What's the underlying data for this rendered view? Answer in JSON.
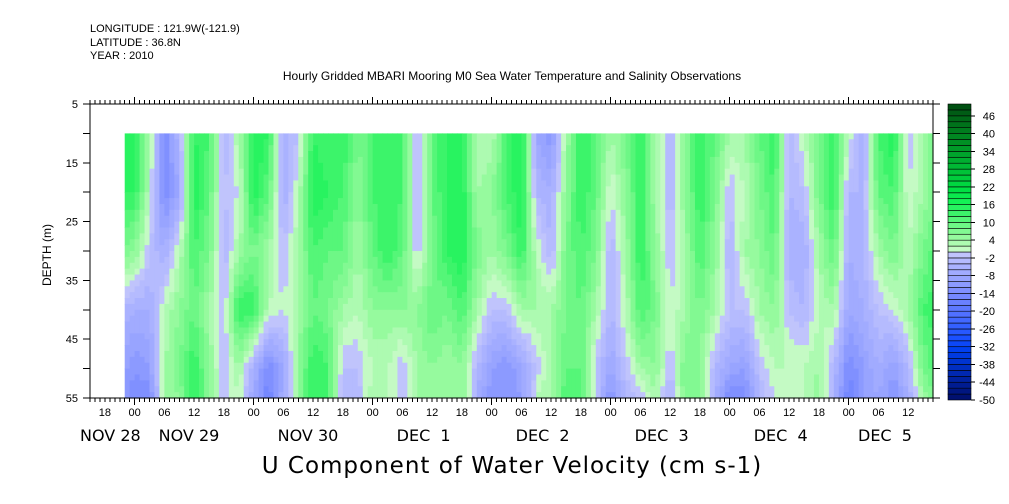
{
  "header": {
    "longitude": "LONGITUDE : 121.9W(-121.9)",
    "latitude": "LATITUDE : 36.8N",
    "year": "YEAR : 2010"
  },
  "chart_data": {
    "type": "heatmap",
    "title": "Hourly Gridded MBARI Mooring M0 Sea Water Temperature and Salinity Observations",
    "xlabel": "U Component of Water Velocity (cm s-1)",
    "ylabel": "DEPTH (m)",
    "xlim": [
      "2010-11-28 15:00",
      "2010-12-05 17:00"
    ],
    "ylim": [
      5,
      55
    ],
    "y_inverted": true,
    "y_ticks": [
      5,
      15,
      25,
      35,
      45,
      55
    ],
    "hour_ticks": {
      "start": "2010-11-28 18:00",
      "step_hours": 6,
      "labels": [
        "18",
        "00",
        "06",
        "12",
        "18",
        "00",
        "06",
        "12",
        "18",
        "00",
        "06",
        "12",
        "18",
        "00",
        "06",
        "12",
        "18",
        "00",
        "06",
        "12",
        "18",
        "00",
        "06",
        "12",
        "18",
        "00",
        "06",
        "12"
      ]
    },
    "date_labels": [
      {
        "date": "2010-11-28",
        "label": "NOV 28"
      },
      {
        "date": "2010-11-29",
        "label": "NOV 29"
      },
      {
        "date": "2010-11-30",
        "label": "NOV 30"
      },
      {
        "date": "2010-12-01",
        "label": "DEC  1"
      },
      {
        "date": "2010-12-02",
        "label": "DEC  2"
      },
      {
        "date": "2010-12-03",
        "label": "DEC  3"
      },
      {
        "date": "2010-12-04",
        "label": "DEC  4"
      },
      {
        "date": "2010-12-05",
        "label": "DEC  5"
      }
    ],
    "data_time_range": [
      "2010-11-28 22:00",
      "2010-12-05 17:00"
    ],
    "grid_time_start": "2010-11-28 21:00",
    "grid_step_hours": 3,
    "depths": [
      10,
      20,
      30,
      40,
      50,
      55
    ],
    "values": [
      [
        14,
        14,
        8,
        -4,
        -8,
        -8
      ],
      [
        16,
        14,
        6,
        -6,
        -12,
        -14
      ],
      [
        4,
        2,
        -2,
        -6,
        -10,
        -14
      ],
      [
        -14,
        -14,
        -6,
        2,
        4,
        4
      ],
      [
        -4,
        -8,
        2,
        6,
        8,
        6
      ],
      [
        14,
        16,
        12,
        10,
        14,
        14
      ],
      [
        12,
        10,
        8,
        4,
        6,
        6
      ],
      [
        -4,
        -2,
        -4,
        -2,
        -2,
        -2
      ],
      [
        4,
        0,
        4,
        14,
        4,
        2
      ],
      [
        16,
        16,
        8,
        14,
        -6,
        -8
      ],
      [
        14,
        10,
        4,
        2,
        -14,
        -16
      ],
      [
        -6,
        -6,
        -2,
        0,
        -8,
        -6
      ],
      [
        -2,
        2,
        4,
        4,
        6,
        6
      ],
      [
        14,
        16,
        12,
        10,
        14,
        14
      ],
      [
        12,
        14,
        10,
        8,
        12,
        12
      ],
      [
        14,
        12,
        10,
        4,
        -2,
        -4
      ],
      [
        8,
        6,
        4,
        2,
        -2,
        -4
      ],
      [
        12,
        12,
        10,
        6,
        2,
        4
      ],
      [
        14,
        14,
        14,
        6,
        2,
        2
      ],
      [
        12,
        12,
        10,
        6,
        -2,
        -2
      ],
      [
        -4,
        -4,
        -2,
        6,
        4,
        4
      ],
      [
        10,
        10,
        8,
        10,
        6,
        6
      ],
      [
        14,
        14,
        14,
        8,
        4,
        4
      ],
      [
        16,
        16,
        16,
        12,
        6,
        6
      ],
      [
        2,
        4,
        8,
        4,
        -4,
        -6
      ],
      [
        2,
        6,
        4,
        -2,
        -10,
        -12
      ],
      [
        12,
        12,
        8,
        -2,
        -12,
        -12
      ],
      [
        16,
        16,
        14,
        4,
        -8,
        -10
      ],
      [
        -8,
        -4,
        2,
        4,
        -2,
        2
      ],
      [
        -12,
        -6,
        -4,
        4,
        4,
        4
      ],
      [
        4,
        6,
        8,
        8,
        10,
        12
      ],
      [
        14,
        14,
        12,
        10,
        10,
        12
      ],
      [
        10,
        10,
        8,
        4,
        -2,
        -2
      ],
      [
        4,
        0,
        -4,
        -4,
        -8,
        -12
      ],
      [
        8,
        6,
        4,
        2,
        -2,
        -4
      ],
      [
        14,
        14,
        14,
        12,
        4,
        -2
      ],
      [
        4,
        4,
        6,
        8,
        6,
        4
      ],
      [
        -4,
        -4,
        -2,
        0,
        -2,
        -6
      ],
      [
        6,
        6,
        4,
        4,
        8,
        8
      ],
      [
        14,
        14,
        12,
        8,
        6,
        6
      ],
      [
        10,
        8,
        6,
        4,
        -4,
        -6
      ],
      [
        4,
        -2,
        -4,
        -2,
        -8,
        -14
      ],
      [
        4,
        2,
        4,
        -2,
        -10,
        -14
      ],
      [
        10,
        8,
        6,
        4,
        -2,
        -4
      ],
      [
        14,
        12,
        10,
        6,
        2,
        0
      ],
      [
        -4,
        -4,
        -6,
        -2,
        2,
        0
      ],
      [
        2,
        -2,
        -6,
        -4,
        2,
        2
      ],
      [
        8,
        8,
        4,
        2,
        4,
        6
      ],
      [
        14,
        14,
        10,
        4,
        -4,
        -6
      ],
      [
        2,
        -4,
        -6,
        -8,
        -14,
        -16
      ],
      [
        -6,
        -4,
        -4,
        -6,
        -10,
        -10
      ],
      [
        12,
        10,
        4,
        -2,
        -6,
        -8
      ],
      [
        16,
        12,
        8,
        0,
        -10,
        -12
      ],
      [
        -2,
        0,
        2,
        4,
        -4,
        -6
      ],
      [
        4,
        4,
        8,
        12,
        8,
        4
      ],
      [
        8,
        8,
        12,
        14,
        12,
        10
      ]
    ],
    "colorbar": {
      "levels_min": -50,
      "levels_max": 50,
      "level_step": 2,
      "labels": [
        46,
        40,
        34,
        28,
        22,
        16,
        10,
        4,
        -2,
        -8,
        -14,
        -20,
        -26,
        -32,
        -38,
        -44,
        -50
      ],
      "positive_colors": [
        "#c4fac4",
        "#96fa9e",
        "#6ef786",
        "#3cf46a",
        "#14f255",
        "#00e044",
        "#00cc3c",
        "#00b834",
        "#00a42c",
        "#009024",
        "#007c1e",
        "#006818",
        "#005012"
      ],
      "negative_colors": [
        "#c0c4fc",
        "#aab2ff",
        "#98a4ff",
        "#8090ff",
        "#6a80ff",
        "#5070ff",
        "#3460ff",
        "#1a50ff",
        "#0040f0",
        "#0034d0",
        "#0028b0",
        "#001c90",
        "#001070"
      ]
    }
  }
}
